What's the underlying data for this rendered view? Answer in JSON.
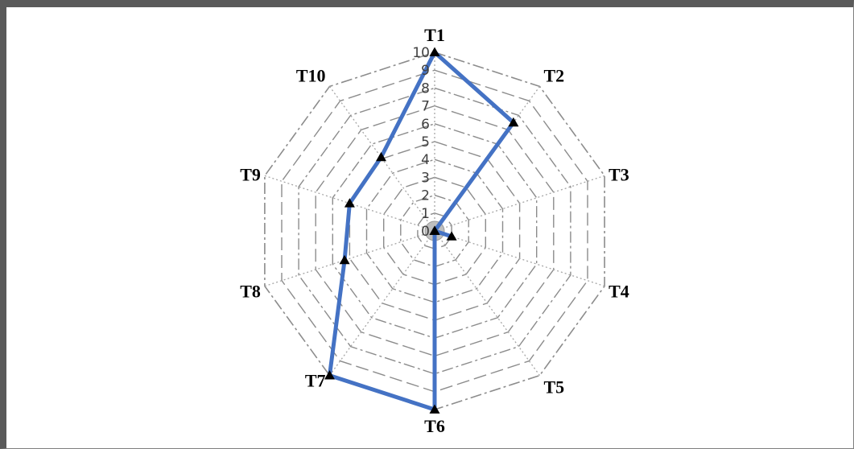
{
  "chart_data": {
    "type": "radar",
    "categories": [
      "T1",
      "T2",
      "T3",
      "T4",
      "T5",
      "T6",
      "T7",
      "T8",
      "T9",
      "T10"
    ],
    "tick_labels": [
      "0",
      "1",
      "2",
      "3",
      "4",
      "5",
      "6",
      "7",
      "8",
      "9",
      "10"
    ],
    "rlim": [
      0,
      10
    ],
    "grid": true,
    "legend": "none",
    "series": [
      {
        "values": [
          10,
          7.5,
          0,
          1,
          0,
          10,
          10,
          5.3,
          5,
          5.1
        ],
        "color": "#4472c4",
        "marker": "triangle"
      }
    ],
    "colors": {
      "series_line": "#4472c4",
      "grid": "#8c8c8c",
      "center_fill": "#bfbfbf",
      "marker": "#000000"
    }
  }
}
